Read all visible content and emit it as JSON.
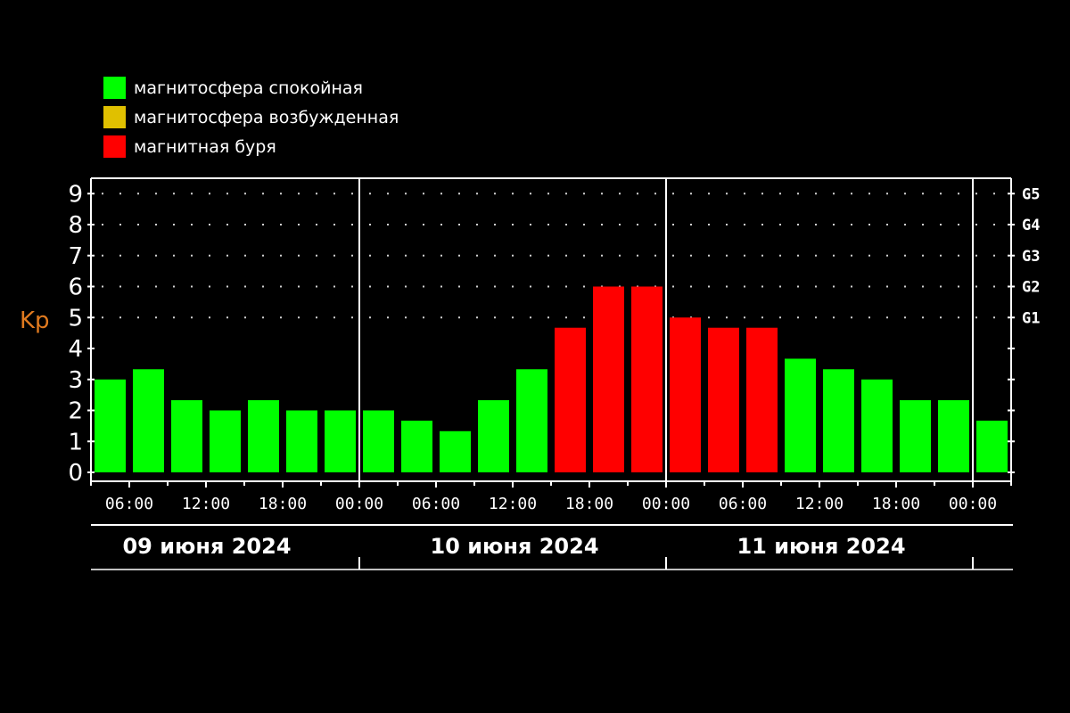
{
  "chart_data": {
    "type": "bar",
    "ylabel": "Kp",
    "ylim": [
      0,
      9.4
    ],
    "yticks": [
      "0",
      "1",
      "2",
      "3",
      "4",
      "5",
      "6",
      "7",
      "8",
      "9"
    ],
    "storm_levels": [
      {
        "label": "G1",
        "value": 5
      },
      {
        "label": "G2",
        "value": 6
      },
      {
        "label": "G3",
        "value": 7
      },
      {
        "label": "G4",
        "value": 8
      },
      {
        "label": "G5",
        "value": 9
      }
    ],
    "x_tick_labels": [
      "06:00",
      "12:00",
      "18:00",
      "00:00",
      "06:00",
      "12:00",
      "18:00",
      "00:00",
      "06:00",
      "12:00",
      "18:00",
      "00:00"
    ],
    "days": [
      "09 июня 2024",
      "10 июня 2024",
      "11 июня 2024"
    ],
    "grid": "dotted",
    "legend_position": "top-left",
    "legend": [
      {
        "label": "магнитосфера спокойная",
        "color": "#00ff00"
      },
      {
        "label": "магнитосфера возбужденная",
        "color": "#e0c000"
      },
      {
        "label": "магнитная буря",
        "color": "#ff0000"
      }
    ],
    "colors": {
      "quiet": "#00ff00",
      "active": "#e0c000",
      "storm": "#ff0000"
    },
    "values": [
      3.0,
      3.33,
      2.33,
      2.0,
      2.33,
      2.0,
      2.0,
      2.0,
      1.67,
      1.33,
      2.33,
      3.33,
      4.67,
      6.0,
      6.0,
      5.0,
      4.67,
      4.67,
      3.67,
      3.33,
      3.0,
      2.33,
      2.33,
      1.67
    ],
    "status": [
      "quiet",
      "quiet",
      "quiet",
      "quiet",
      "quiet",
      "quiet",
      "quiet",
      "quiet",
      "quiet",
      "quiet",
      "quiet",
      "quiet",
      "storm",
      "storm",
      "storm",
      "storm",
      "storm",
      "storm",
      "quiet",
      "quiet",
      "quiet",
      "quiet",
      "quiet",
      "quiet"
    ]
  }
}
